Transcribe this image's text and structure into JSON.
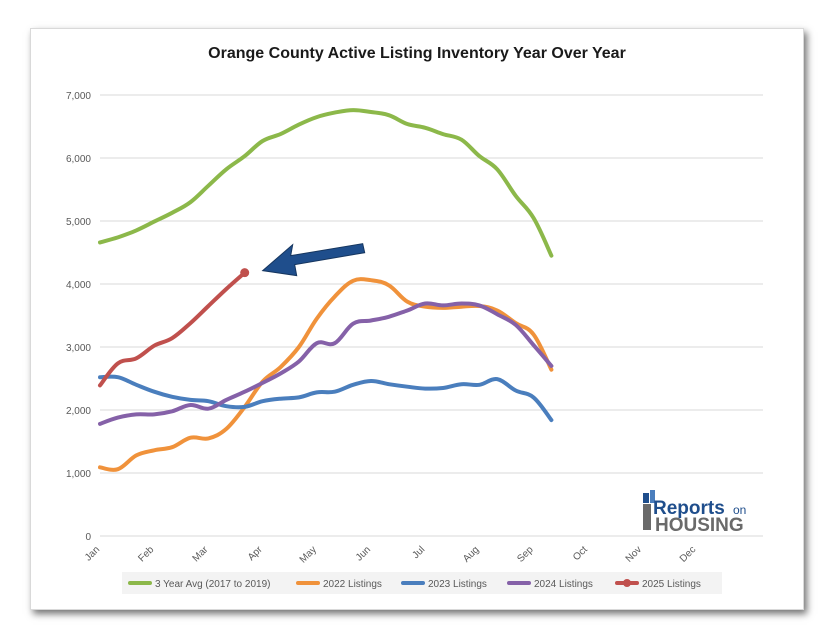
{
  "chart_data": {
    "type": "line",
    "title": "Orange County Active Listing Inventory Year Over Year",
    "xlabel": "",
    "ylabel": "",
    "x": [
      "Jan",
      "Feb",
      "Mar",
      "Apr",
      "May",
      "Jun",
      "Jul",
      "Aug",
      "Sep",
      "Oct",
      "Nov",
      "Dec"
    ],
    "ylim": [
      0,
      7000
    ],
    "y_ticks": [
      "0",
      "1,000",
      "2,000",
      "3,000",
      "4,000",
      "5,000",
      "6,000",
      "7,000"
    ],
    "grid": true,
    "legend_position": "bottom",
    "series": [
      {
        "name": "3 Year Avg (2017 to 2019)",
        "color": "#8cb84a",
        "points": [
          [
            0,
            4660
          ],
          [
            0.33,
            4740
          ],
          [
            0.67,
            4850
          ],
          [
            1.0,
            4990
          ],
          [
            1.33,
            5130
          ],
          [
            1.67,
            5300
          ],
          [
            2.0,
            5560
          ],
          [
            2.33,
            5820
          ],
          [
            2.67,
            6030
          ],
          [
            3.0,
            6270
          ],
          [
            3.33,
            6380
          ],
          [
            3.67,
            6530
          ],
          [
            4.0,
            6650
          ],
          [
            4.33,
            6720
          ],
          [
            4.67,
            6760
          ],
          [
            5.0,
            6730
          ],
          [
            5.33,
            6680
          ],
          [
            5.67,
            6540
          ],
          [
            6.0,
            6480
          ],
          [
            6.33,
            6380
          ],
          [
            6.67,
            6290
          ],
          [
            7.0,
            6030
          ],
          [
            7.33,
            5820
          ],
          [
            7.67,
            5400
          ],
          [
            8.0,
            5050
          ],
          [
            8.33,
            4450
          ]
        ]
      },
      {
        "name": "2022 Listings",
        "color": "#f0923b",
        "points": [
          [
            0,
            1090
          ],
          [
            0.33,
            1060
          ],
          [
            0.67,
            1280
          ],
          [
            1.0,
            1360
          ],
          [
            1.33,
            1410
          ],
          [
            1.67,
            1560
          ],
          [
            2.0,
            1550
          ],
          [
            2.33,
            1700
          ],
          [
            2.67,
            2050
          ],
          [
            3.0,
            2450
          ],
          [
            3.33,
            2680
          ],
          [
            3.67,
            3000
          ],
          [
            4.0,
            3450
          ],
          [
            4.33,
            3800
          ],
          [
            4.67,
            4050
          ],
          [
            5.0,
            4060
          ],
          [
            5.33,
            3980
          ],
          [
            5.67,
            3720
          ],
          [
            6.0,
            3640
          ],
          [
            6.33,
            3620
          ],
          [
            6.67,
            3640
          ],
          [
            7.0,
            3650
          ],
          [
            7.33,
            3580
          ],
          [
            7.67,
            3380
          ],
          [
            8.0,
            3200
          ],
          [
            8.33,
            2640
          ]
        ]
      },
      {
        "name": "2023 Listings",
        "color": "#4a7ebd",
        "points": [
          [
            0,
            2520
          ],
          [
            0.33,
            2520
          ],
          [
            0.67,
            2400
          ],
          [
            1.0,
            2290
          ],
          [
            1.33,
            2210
          ],
          [
            1.67,
            2160
          ],
          [
            2.0,
            2140
          ],
          [
            2.33,
            2060
          ],
          [
            2.67,
            2050
          ],
          [
            3.0,
            2140
          ],
          [
            3.33,
            2180
          ],
          [
            3.67,
            2200
          ],
          [
            4.0,
            2280
          ],
          [
            4.33,
            2290
          ],
          [
            4.67,
            2400
          ],
          [
            5.0,
            2460
          ],
          [
            5.33,
            2410
          ],
          [
            5.67,
            2370
          ],
          [
            6.0,
            2340
          ],
          [
            6.33,
            2350
          ],
          [
            6.67,
            2410
          ],
          [
            7.0,
            2400
          ],
          [
            7.33,
            2490
          ],
          [
            7.67,
            2310
          ],
          [
            8.0,
            2200
          ],
          [
            8.33,
            1840
          ]
        ]
      },
      {
        "name": "2024 Listings",
        "color": "#8561a8",
        "points": [
          [
            0,
            1780
          ],
          [
            0.33,
            1880
          ],
          [
            0.67,
            1930
          ],
          [
            1.0,
            1930
          ],
          [
            1.33,
            1980
          ],
          [
            1.67,
            2080
          ],
          [
            2.0,
            2020
          ],
          [
            2.33,
            2160
          ],
          [
            2.67,
            2290
          ],
          [
            3.0,
            2430
          ],
          [
            3.33,
            2580
          ],
          [
            3.67,
            2770
          ],
          [
            4.0,
            3060
          ],
          [
            4.33,
            3060
          ],
          [
            4.67,
            3370
          ],
          [
            5.0,
            3420
          ],
          [
            5.33,
            3480
          ],
          [
            5.67,
            3580
          ],
          [
            6.0,
            3690
          ],
          [
            6.33,
            3660
          ],
          [
            6.67,
            3690
          ],
          [
            7.0,
            3660
          ],
          [
            7.33,
            3520
          ],
          [
            7.67,
            3350
          ],
          [
            8.0,
            3030
          ],
          [
            8.33,
            2700
          ]
        ]
      },
      {
        "name": "2025 Listings",
        "color": "#c0504d",
        "points": [
          [
            0,
            2390
          ],
          [
            0.33,
            2740
          ],
          [
            0.67,
            2820
          ],
          [
            1.0,
            3020
          ],
          [
            1.33,
            3140
          ],
          [
            1.67,
            3380
          ],
          [
            2.0,
            3650
          ],
          [
            2.33,
            3920
          ],
          [
            2.67,
            4180
          ]
        ]
      }
    ]
  },
  "annotation": {
    "arrow_color": "#1f4e8c",
    "marker_color": "#c0504d",
    "points_to": "2025 Listings latest value"
  },
  "logo": {
    "line1a": "Reports",
    "line1b": "on",
    "line2": "HOUSING"
  },
  "colors": {
    "grid": "#d9d9d9",
    "tick_text": "#595959"
  }
}
